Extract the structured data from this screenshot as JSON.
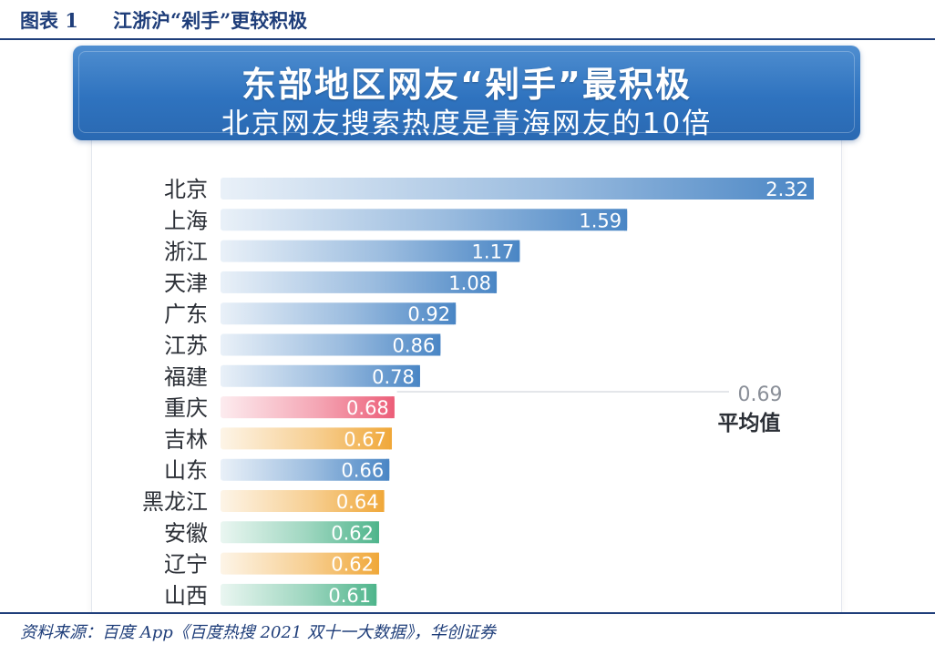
{
  "figure": {
    "number": "图表 1",
    "title": "江浙沪“剁手”更较积极"
  },
  "banner": {
    "line1": "东部地区网友“剁手”最积极",
    "line2": "北京网友搜索热度是青海网友的10倍"
  },
  "average": {
    "value": "0.69",
    "label": "平均值"
  },
  "source": "资料来源：百度 App《百度热搜 2021 双十一大数据》，华创证券",
  "colors": {
    "blue": "#4a86c5",
    "pink": "#ec5f79",
    "orange": "#f0a83a",
    "green": "#4fb58c",
    "header": "#1f3e7a"
  },
  "chart_data": {
    "type": "bar",
    "orientation": "horizontal",
    "categories": [
      "北京",
      "上海",
      "浙江",
      "天津",
      "广东",
      "江苏",
      "福建",
      "重庆",
      "吉林",
      "山东",
      "黑龙江",
      "安徽",
      "辽宁",
      "山西"
    ],
    "values": [
      2.32,
      1.59,
      1.17,
      1.08,
      0.92,
      0.86,
      0.78,
      0.68,
      0.67,
      0.66,
      0.64,
      0.62,
      0.62,
      0.61
    ],
    "value_labels": [
      "2.32",
      "1.59",
      "1.17",
      "1.08",
      "0.92",
      "0.86",
      "0.78",
      "0.68",
      "0.67",
      "0.66",
      "0.64",
      "0.62",
      "0.62",
      "0.61"
    ],
    "bar_colors": [
      "blue",
      "blue",
      "blue",
      "blue",
      "blue",
      "blue",
      "blue",
      "pink",
      "orange",
      "blue",
      "orange",
      "green",
      "orange",
      "green"
    ],
    "average_line": 0.69,
    "xlim": [
      0,
      2.35
    ]
  }
}
